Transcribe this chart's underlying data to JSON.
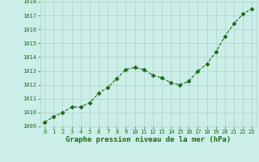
{
  "x": [
    0,
    1,
    2,
    3,
    4,
    5,
    6,
    7,
    8,
    9,
    10,
    11,
    12,
    13,
    14,
    15,
    16,
    17,
    18,
    19,
    20,
    21,
    22,
    23
  ],
  "y": [
    1009.3,
    1009.7,
    1010.0,
    1010.4,
    1010.4,
    1010.7,
    1011.4,
    1011.8,
    1012.45,
    1013.1,
    1013.25,
    1013.1,
    1012.7,
    1012.5,
    1012.15,
    1012.0,
    1012.25,
    1013.0,
    1013.5,
    1014.35,
    1015.5,
    1016.4,
    1017.1,
    1017.5
  ],
  "ylim": [
    1009,
    1018
  ],
  "yticks": [
    1009,
    1010,
    1011,
    1012,
    1013,
    1014,
    1015,
    1016,
    1017,
    1018
  ],
  "xticks": [
    0,
    1,
    2,
    3,
    4,
    5,
    6,
    7,
    8,
    9,
    10,
    11,
    12,
    13,
    14,
    15,
    16,
    17,
    18,
    19,
    20,
    21,
    22,
    23
  ],
  "xlabel": "Graphe pression niveau de la mer (hPa)",
  "line_color": "#1a6b1a",
  "marker_color": "#1a6b1a",
  "bg_color": "#cceee8",
  "grid_color": "#aad4cc",
  "xlabel_color": "#1a6b1a",
  "tick_label_color": "#1a6b1a"
}
